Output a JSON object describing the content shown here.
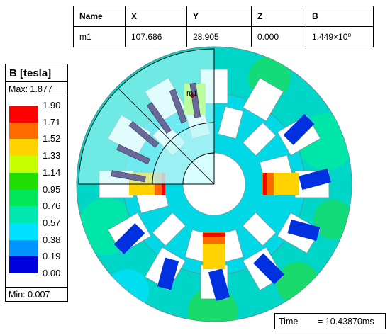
{
  "probe_table": {
    "headers": [
      "Name",
      "X",
      "Y",
      "Z",
      "B"
    ],
    "row": [
      "m1",
      "107.686",
      "28.905",
      "0.000",
      "1.449×10⁰"
    ]
  },
  "legend": {
    "title": "B [tesla]",
    "max_label": "Max: 1.877",
    "min_label": "Min: 0.007",
    "ticks": [
      "1.90",
      "1.71",
      "1.52",
      "1.33",
      "1.14",
      "0.95",
      "0.76",
      "0.57",
      "0.38",
      "0.19",
      "0.00"
    ],
    "colors": [
      "#ff0000",
      "#ff6a00",
      "#ffd200",
      "#c8ff00",
      "#22dd00",
      "#00e85a",
      "#00e8b0",
      "#00e2ff",
      "#0094ff",
      "#0044ff",
      "#0000dd"
    ]
  },
  "marker": {
    "label": "m1"
  },
  "time": {
    "label": "Time",
    "value": "= 10.43870ms"
  }
}
